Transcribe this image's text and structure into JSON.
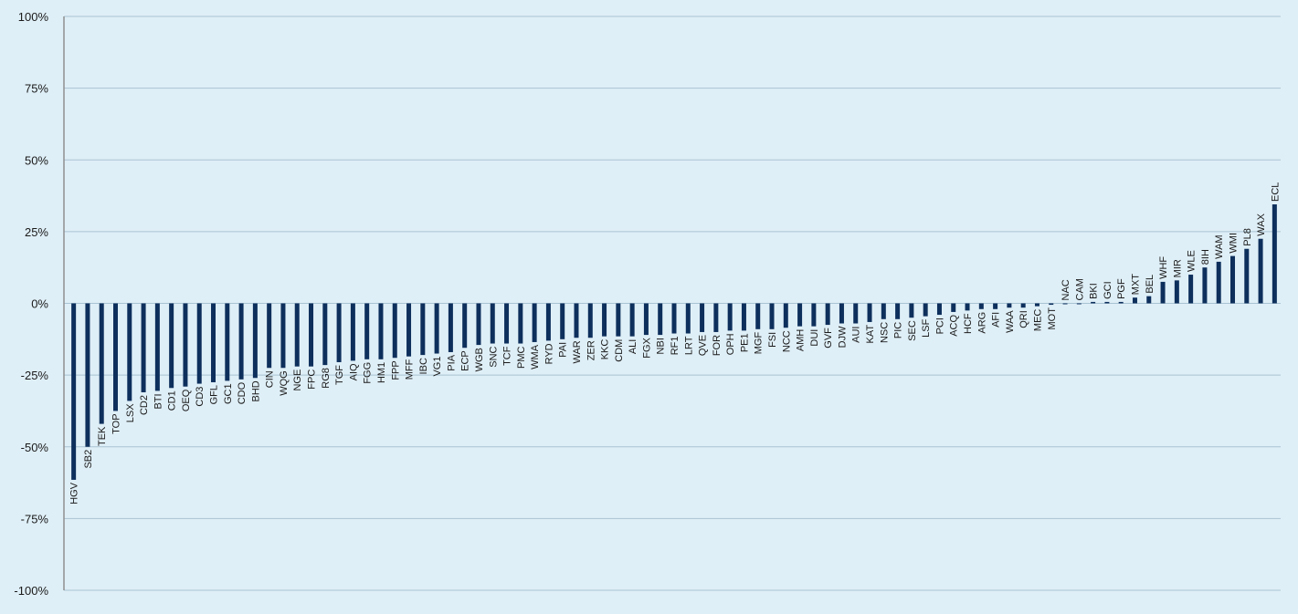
{
  "chart_data": {
    "type": "bar",
    "title": "",
    "xlabel": "",
    "ylabel": "",
    "ylim": [
      -1,
      1
    ],
    "yticks": [
      1,
      0.75,
      0.5,
      0.25,
      0,
      -0.25,
      -0.5,
      -0.75,
      -1
    ],
    "ytick_labels": [
      "100%",
      "75%",
      "50%",
      "25%",
      "0%",
      "-25%",
      "-50%",
      "-75%",
      "-100%"
    ],
    "grid": true,
    "legend": "none",
    "bar_color": "#0d2f5c",
    "categories": [
      "HGV",
      "SB2",
      "TEK",
      "TOP",
      "LSX",
      "CD2",
      "BTI",
      "CD1",
      "OEQ",
      "CD3",
      "GFL",
      "GC1",
      "CDO",
      "BHD",
      "CIN",
      "WQG",
      "NGE",
      "FPC",
      "RG8",
      "TGF",
      "AIQ",
      "FGG",
      "HM1",
      "FPP",
      "MFF",
      "IBC",
      "VG1",
      "PIA",
      "ECP",
      "WGB",
      "SNC",
      "TCF",
      "PMC",
      "WMA",
      "RYD",
      "PAI",
      "WAR",
      "ZER",
      "KKC",
      "CDM",
      "ALI",
      "FGX",
      "NBI",
      "RF1",
      "LRT",
      "QVE",
      "FOR",
      "OPH",
      "PE1",
      "MGF",
      "FSI",
      "NCC",
      "AMH",
      "DUI",
      "GVF",
      "DJW",
      "AUI",
      "KAT",
      "NSC",
      "PIC",
      "SEC",
      "LSF",
      "PCI",
      "ACQ",
      "HCF",
      "ARG",
      "AFI",
      "WAA",
      "QRI",
      "MEC",
      "MOT",
      "NAC",
      "CAM",
      "BKI",
      "GCI",
      "PGF",
      "MXT",
      "BEL",
      "WHF",
      "MIR",
      "WLE",
      "8IH",
      "WAM",
      "WMI",
      "PL8",
      "WAX",
      "ECL"
    ],
    "values": [
      -0.615,
      -0.5,
      -0.42,
      -0.375,
      -0.34,
      -0.31,
      -0.305,
      -0.295,
      -0.29,
      -0.28,
      -0.275,
      -0.27,
      -0.265,
      -0.26,
      -0.225,
      -0.225,
      -0.22,
      -0.22,
      -0.215,
      -0.205,
      -0.2,
      -0.195,
      -0.195,
      -0.19,
      -0.185,
      -0.18,
      -0.175,
      -0.17,
      -0.155,
      -0.145,
      -0.14,
      -0.14,
      -0.14,
      -0.135,
      -0.13,
      -0.125,
      -0.12,
      -0.12,
      -0.115,
      -0.115,
      -0.115,
      -0.11,
      -0.11,
      -0.105,
      -0.105,
      -0.1,
      -0.1,
      -0.095,
      -0.095,
      -0.09,
      -0.09,
      -0.085,
      -0.08,
      -0.08,
      -0.075,
      -0.07,
      -0.07,
      -0.065,
      -0.055,
      -0.055,
      -0.05,
      -0.045,
      -0.04,
      -0.03,
      -0.025,
      -0.02,
      -0.02,
      -0.015,
      -0.015,
      -0.01,
      -0.005,
      0,
      0,
      0.005,
      0.005,
      0.005,
      0.02,
      0.025,
      0.075,
      0.08,
      0.1,
      0.125,
      0.145,
      0.165,
      0.19,
      0.225,
      0.345
    ]
  }
}
